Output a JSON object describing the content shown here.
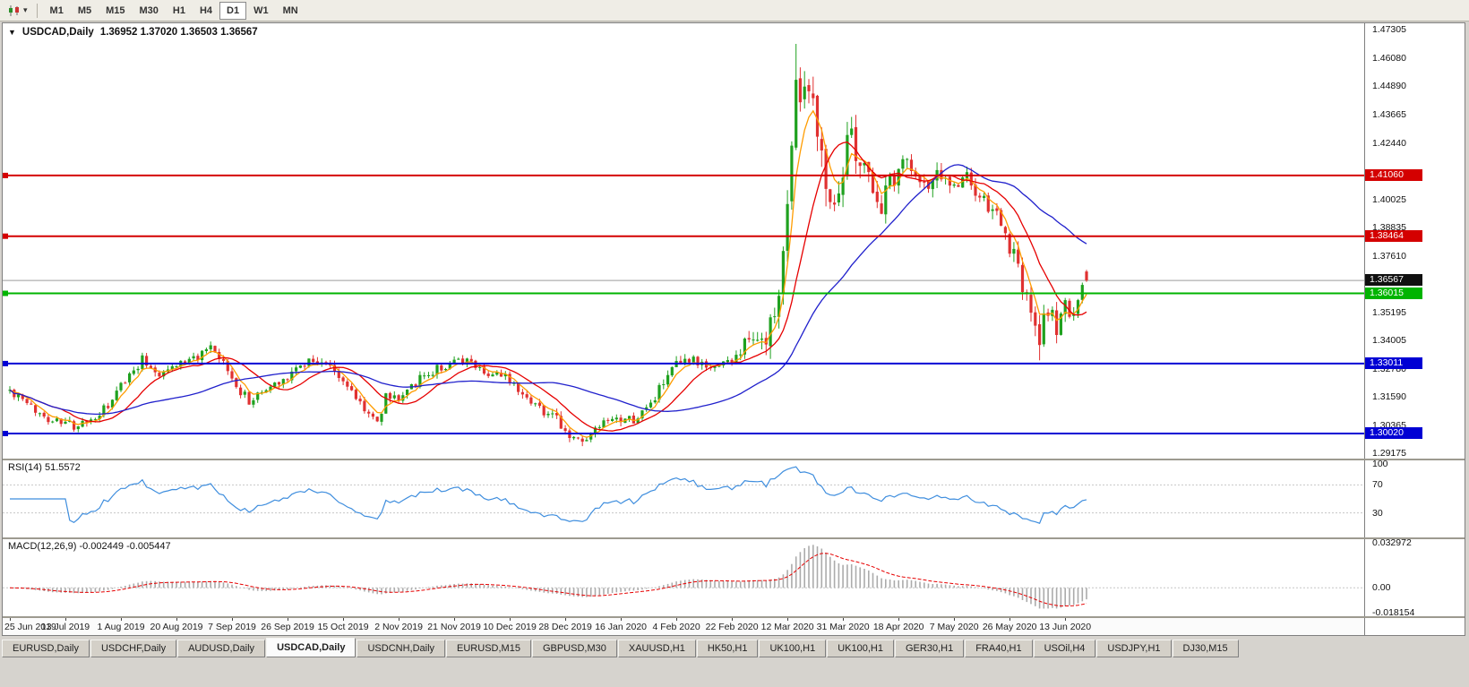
{
  "colors": {
    "up_candle": "#1fa11f",
    "down_candle": "#e03131",
    "ma_fast": "#ff9c00",
    "ma_mid": "#e60000",
    "ma_slow": "#2020cc",
    "current_price_line": "#9c9c9c",
    "rsi_line": "#3f8ede",
    "macd_histogram": "#ababab",
    "macd_signal": "#e60000"
  },
  "toolbar": {
    "timeframes": [
      "M1",
      "M5",
      "M15",
      "M30",
      "H1",
      "H4",
      "D1",
      "W1",
      "MN"
    ],
    "active_timeframe": "D1"
  },
  "chart_header": {
    "dropdown_glyph": "▼",
    "symbol": "USDCAD,Daily",
    "ohlc": "1.36952 1.37020 1.36503 1.36567"
  },
  "price_scale": {
    "ticks": [
      {
        "label": "1.47305",
        "price": 1.47305
      },
      {
        "label": "1.46080",
        "price": 1.4608
      },
      {
        "label": "1.44890",
        "price": 1.4489
      },
      {
        "label": "1.43665",
        "price": 1.43665
      },
      {
        "label": "1.42440",
        "price": 1.4244
      },
      {
        "label": "1.40025",
        "price": 1.40025
      },
      {
        "label": "1.38835",
        "price": 1.38835
      },
      {
        "label": "1.37610",
        "price": 1.3761
      },
      {
        "label": "1.35195",
        "price": 1.35195
      },
      {
        "label": "1.34005",
        "price": 1.34005
      },
      {
        "label": "1.32780",
        "price": 1.3278
      },
      {
        "label": "1.31590",
        "price": 1.3159
      },
      {
        "label": "1.30365",
        "price": 1.30365
      },
      {
        "label": "1.29175",
        "price": 1.29175
      }
    ],
    "badges": [
      {
        "label": "1.41060",
        "price": 1.4106,
        "color": "#d40000",
        "name": "resistance-price-badge"
      },
      {
        "label": "1.38464",
        "price": 1.38464,
        "color": "#d40000",
        "name": "resistance-price-badge"
      },
      {
        "label": "1.36567",
        "price": 1.36567,
        "color": "#101010",
        "name": "current-price-badge"
      },
      {
        "label": "1.36015",
        "price": 1.36015,
        "color": "#00b400",
        "name": "support-price-badge"
      },
      {
        "label": "1.33011",
        "price": 1.33011,
        "color": "#0000d4",
        "name": "support-price-badge"
      },
      {
        "label": "1.30020",
        "price": 1.3002,
        "color": "#0000d4",
        "name": "support-price-badge"
      }
    ]
  },
  "rsi_panel": {
    "label": "RSI(14) 51.5572"
  },
  "macd_panel": {
    "label": "MACD(12,26,9) -0.002449 -0.005447"
  },
  "time_axis": {
    "labels": [
      {
        "label": "25 Jun 2019",
        "index": 0
      },
      {
        "label": "13 Jul 2019",
        "index": 13
      },
      {
        "label": "1 Aug 2019",
        "index": 26
      },
      {
        "label": "20 Aug 2019",
        "index": 39
      },
      {
        "label": "7 Sep 2019",
        "index": 52
      },
      {
        "label": "26 Sep 2019",
        "index": 65
      },
      {
        "label": "15 Oct 2019",
        "index": 78
      },
      {
        "label": "2 Nov 2019",
        "index": 91
      },
      {
        "label": "21 Nov 2019",
        "index": 104
      },
      {
        "label": "10 Dec 2019",
        "index": 117
      },
      {
        "label": "28 Dec 2019",
        "index": 130
      },
      {
        "label": "16 Jan 2020",
        "index": 143
      },
      {
        "label": "4 Feb 2020",
        "index": 156
      },
      {
        "label": "22 Feb 2020",
        "index": 169
      },
      {
        "label": "12 Mar 2020",
        "index": 182
      },
      {
        "label": "31 Mar 2020",
        "index": 195
      },
      {
        "label": "18 Apr 2020",
        "index": 208
      },
      {
        "label": "7 May 2020",
        "index": 221
      },
      {
        "label": "26 May 2020",
        "index": 234
      },
      {
        "label": "13 Jun 2020",
        "index": 247
      }
    ]
  },
  "tabs": {
    "active_index": 3,
    "items": [
      "EURUSD,Daily",
      "USDCHF,Daily",
      "AUDUSD,Daily",
      "USDCAD,Daily",
      "USDCNH,Daily",
      "EURUSD,M15",
      "GBPUSD,M30",
      "XAUUSD,H1",
      "HK50,H1",
      "UK100,H1",
      "UK100,H1",
      "GER30,H1",
      "FRA40,H1",
      "USOil,H4",
      "USDJPY,H1",
      "DJ30,M15"
    ],
    "active_label": "USDCAD,Daily"
  },
  "chart_data": {
    "type": "candlestick",
    "symbol": "USDCAD",
    "period": "Daily",
    "last_ohlc": {
      "open": 1.36952,
      "high": 1.3702,
      "low": 1.36503,
      "close": 1.36567
    },
    "visible_range": {
      "price_max": 1.47305,
      "price_min": 1.29175
    },
    "candle_count": 253,
    "current_price": 1.36567,
    "close_path": [
      [
        0,
        1.3185
      ],
      [
        4,
        1.3125
      ],
      [
        8,
        1.3075
      ],
      [
        13,
        1.3045
      ],
      [
        16,
        1.3028
      ],
      [
        20,
        1.307
      ],
      [
        24,
        1.3135
      ],
      [
        26,
        1.321
      ],
      [
        31,
        1.332
      ],
      [
        35,
        1.326
      ],
      [
        39,
        1.33
      ],
      [
        44,
        1.333
      ],
      [
        47,
        1.336
      ],
      [
        50,
        1.33
      ],
      [
        52,
        1.323
      ],
      [
        56,
        1.314
      ],
      [
        60,
        1.319
      ],
      [
        65,
        1.325
      ],
      [
        70,
        1.332
      ],
      [
        74,
        1.33
      ],
      [
        78,
        1.323
      ],
      [
        83,
        1.311
      ],
      [
        86,
        1.3045
      ],
      [
        88,
        1.316
      ],
      [
        91,
        1.316
      ],
      [
        95,
        1.322
      ],
      [
        100,
        1.328
      ],
      [
        104,
        1.33
      ],
      [
        108,
        1.331
      ],
      [
        112,
        1.326
      ],
      [
        117,
        1.3235
      ],
      [
        121,
        1.3165
      ],
      [
        125,
        1.31
      ],
      [
        128,
        1.306
      ],
      [
        131,
        1.299
      ],
      [
        134,
        1.2962
      ],
      [
        137,
        1.301
      ],
      [
        140,
        1.305
      ],
      [
        143,
        1.3048
      ],
      [
        147,
        1.307
      ],
      [
        150,
        1.313
      ],
      [
        153,
        1.322
      ],
      [
        156,
        1.329
      ],
      [
        160,
        1.331
      ],
      [
        163,
        1.328
      ],
      [
        166,
        1.33
      ],
      [
        169,
        1.331
      ],
      [
        172,
        1.338
      ],
      [
        175,
        1.343
      ],
      [
        177,
        1.338
      ],
      [
        179,
        1.352
      ],
      [
        181,
        1.372
      ],
      [
        183,
        1.425
      ],
      [
        184,
        1.46
      ],
      [
        185,
        1.445
      ],
      [
        186,
        1.451
      ],
      [
        188,
        1.448
      ],
      [
        190,
        1.42
      ],
      [
        192,
        1.4
      ],
      [
        195,
        1.415
      ],
      [
        197,
        1.428
      ],
      [
        199,
        1.418
      ],
      [
        202,
        1.406
      ],
      [
        204,
        1.397
      ],
      [
        206,
        1.408
      ],
      [
        208,
        1.412
      ],
      [
        210,
        1.42
      ],
      [
        212,
        1.41
      ],
      [
        215,
        1.405
      ],
      [
        218,
        1.412
      ],
      [
        221,
        1.405
      ],
      [
        224,
        1.41
      ],
      [
        227,
        1.4
      ],
      [
        230,
        1.395
      ],
      [
        232,
        1.39
      ],
      [
        234,
        1.38
      ],
      [
        236,
        1.37
      ],
      [
        238,
        1.356
      ],
      [
        240,
        1.345
      ],
      [
        241,
        1.339
      ],
      [
        242,
        1.348
      ],
      [
        243,
        1.354
      ],
      [
        244,
        1.35
      ],
      [
        245,
        1.346
      ],
      [
        246,
        1.351
      ],
      [
        247,
        1.3545
      ],
      [
        248,
        1.349
      ],
      [
        249,
        1.353
      ],
      [
        250,
        1.358
      ],
      [
        251,
        1.364
      ],
      [
        252,
        1.3657
      ]
    ],
    "volatility_path": [
      [
        0,
        0.0026
      ],
      [
        130,
        0.0028
      ],
      [
        170,
        0.0032
      ],
      [
        176,
        0.006
      ],
      [
        180,
        0.011
      ],
      [
        186,
        0.013
      ],
      [
        196,
        0.009
      ],
      [
        205,
        0.006
      ],
      [
        225,
        0.0045
      ],
      [
        233,
        0.0055
      ],
      [
        240,
        0.007
      ],
      [
        246,
        0.005
      ],
      [
        252,
        0.004
      ]
    ],
    "overrides": [
      {
        "i": 184,
        "h": 1.4669
      },
      {
        "i": 241,
        "l": 1.3315
      },
      {
        "i": 252,
        "o": 1.36952,
        "h": 1.3702,
        "l": 1.36503,
        "c": 1.36567
      }
    ],
    "horizontal_lines": [
      {
        "price": 1.4106,
        "label": "1.41060",
        "color": "#d40000"
      },
      {
        "price": 1.38464,
        "label": "1.38464",
        "color": "#d40000"
      },
      {
        "price": 1.36015,
        "label": "1.36015",
        "color": "#00b400"
      },
      {
        "price": 1.33011,
        "label": "1.33011",
        "color": "#0000d4"
      },
      {
        "price": 1.3002,
        "label": "1.30020",
        "color": "#0000d4"
      }
    ],
    "moving_averages": [
      {
        "name": "fast",
        "type": "ema",
        "period": 5,
        "color": "#ff9c00"
      },
      {
        "name": "mid",
        "type": "sma",
        "period": 13,
        "color": "#e60000"
      },
      {
        "name": "slow",
        "type": "sma",
        "period": 40,
        "color": "#2020cc"
      }
    ],
    "rsi": {
      "period": 14,
      "current": 51.5572,
      "levels": [
        70,
        30
      ],
      "range": [
        0,
        100
      ],
      "scale": [
        {
          "label": "100",
          "value": 100
        },
        {
          "label": "70",
          "value": 70
        },
        {
          "label": "30",
          "value": 30
        }
      ]
    },
    "macd": {
      "fast": 12,
      "slow": 26,
      "signal": 9,
      "current_macd": -0.002449,
      "current_signal": -0.005447,
      "scale_max": 0.032972,
      "scale_min": -0.018154,
      "scale": [
        {
          "label": "0.032972",
          "value": 0.032972
        },
        {
          "label": "0.00",
          "value": 0
        },
        {
          "label": "-0.018154",
          "value": -0.018154
        }
      ]
    }
  }
}
